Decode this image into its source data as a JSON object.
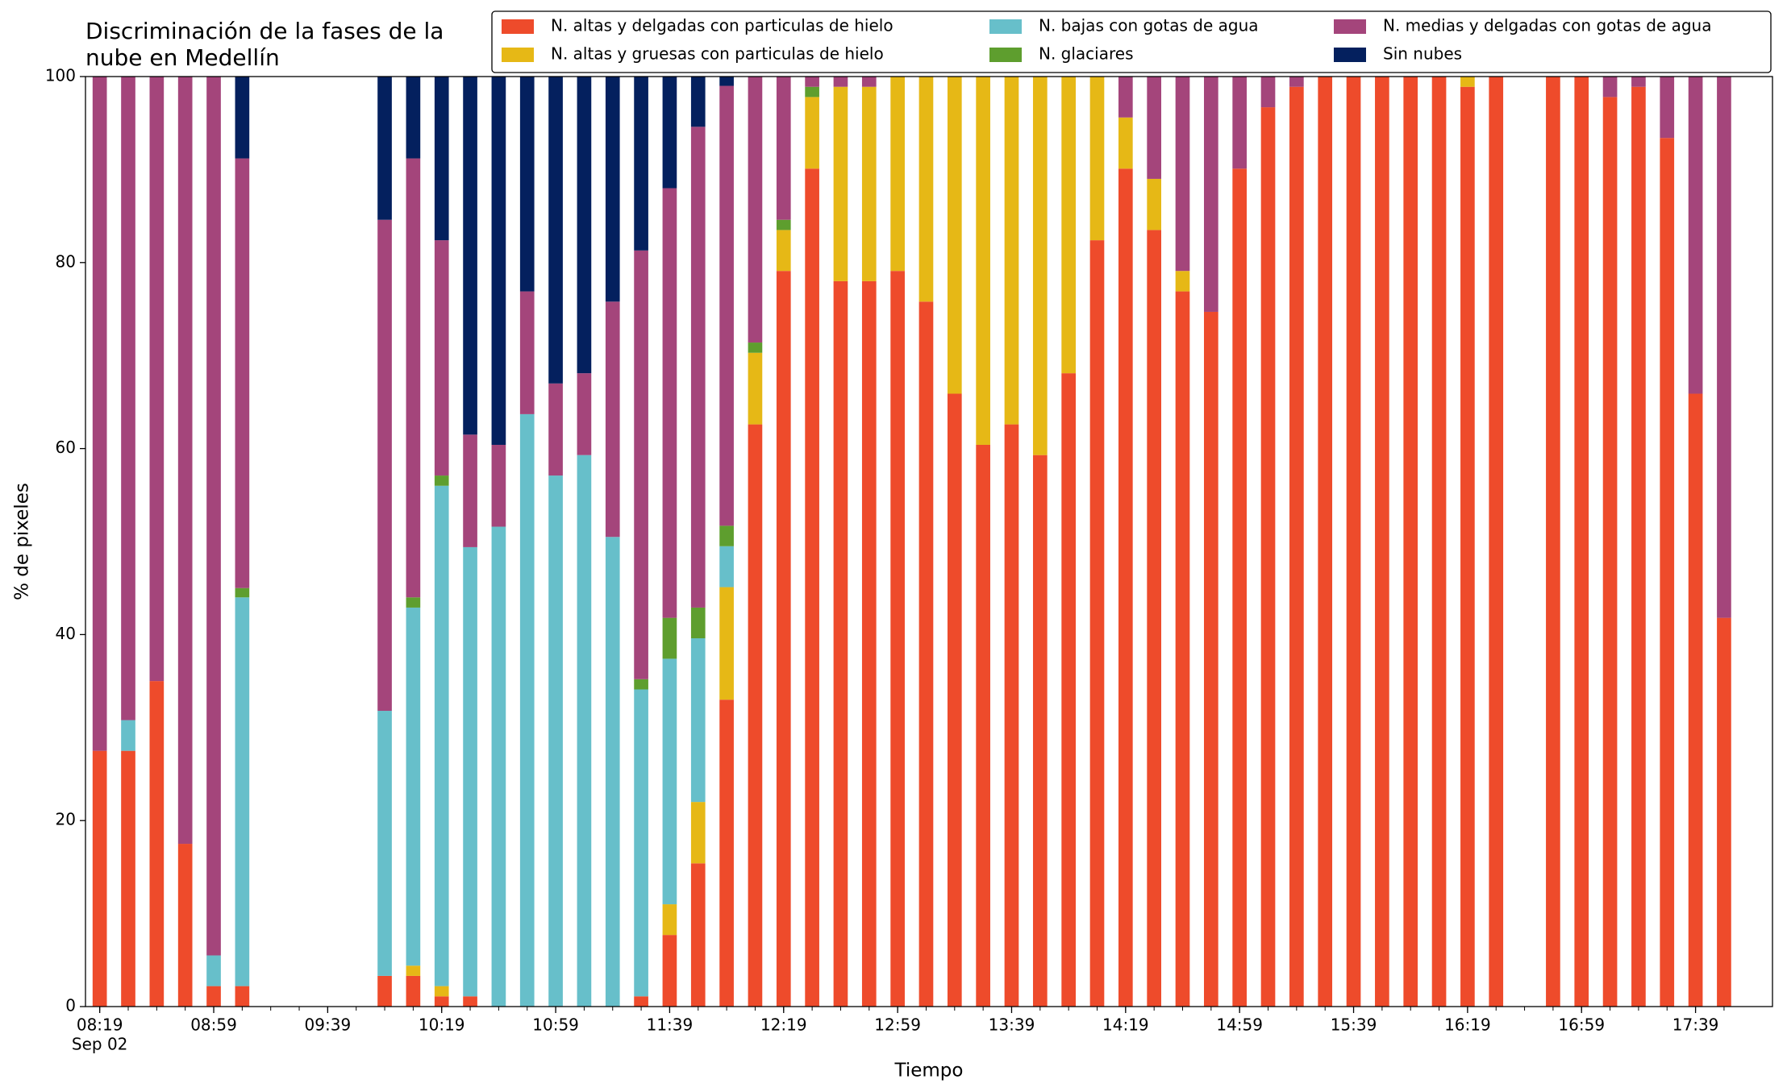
{
  "chart_data": {
    "type": "stacked_bar",
    "title": [
      "Discriminación de la fases de la",
      "nube en Medellín"
    ],
    "xlabel": "Tiempo",
    "ylabel": "% de pixeles",
    "x": [
      "08:19",
      "08:29",
      "08:39",
      "08:49",
      "08:59",
      "09:09",
      "09:19",
      "09:29",
      "09:39",
      "09:49",
      "09:59",
      "10:09",
      "10:19",
      "10:29",
      "10:39",
      "10:49",
      "10:59",
      "11:09",
      "11:19",
      "11:29",
      "11:39",
      "11:49",
      "11:59",
      "12:09",
      "12:19",
      "12:29",
      "12:39",
      "12:49",
      "12:59",
      "13:09",
      "13:19",
      "13:29",
      "13:39",
      "13:49",
      "13:59",
      "14:09",
      "14:19",
      "14:29",
      "14:39",
      "14:49",
      "14:59",
      "15:09",
      "15:19",
      "15:29",
      "15:39",
      "15:49",
      "15:59",
      "16:09",
      "16:19",
      "16:29",
      "16:39",
      "16:49",
      "16:59",
      "17:09",
      "17:19",
      "17:29",
      "17:39",
      "17:49"
    ],
    "x_date_label": "Sep 02",
    "xlim": [
      "08:14",
      "18:06"
    ],
    "xticks": [
      "08:19",
      "08:59",
      "09:39",
      "10:19",
      "10:59",
      "11:39",
      "12:19",
      "12:59",
      "13:39",
      "14:19",
      "14:59",
      "15:39",
      "16:19",
      "16:59",
      "17:39"
    ],
    "ylim": [
      0,
      100
    ],
    "yticks": [
      0,
      20,
      40,
      60,
      80,
      100
    ],
    "legend": "top-right",
    "series": [
      {
        "name": "N. altas y delgadas con particulas de hielo",
        "color": "#ee4b2b",
        "values": [
          27.5,
          27.5,
          35,
          17.5,
          2.2,
          2.2,
          null,
          null,
          null,
          null,
          3.3,
          3.3,
          1.1,
          1.1,
          0,
          0,
          0,
          0,
          0,
          1.1,
          7.7,
          15.4,
          33,
          62.6,
          79.1,
          90.1,
          78,
          78,
          79.1,
          75.8,
          65.9,
          60.4,
          62.6,
          59.3,
          68.1,
          82.4,
          90.1,
          83.5,
          76.9,
          74.7,
          90.1,
          96.7,
          98.9,
          100,
          100,
          100,
          100,
          100,
          98.9,
          100,
          null,
          100,
          100,
          97.8,
          98.9,
          93.4,
          65.9,
          41.8
        ]
      },
      {
        "name": "N. altas y gruesas con particulas de hielo",
        "color": "#e6b816",
        "values": [
          0,
          0,
          0,
          0,
          0,
          0,
          null,
          null,
          null,
          null,
          0,
          1.1,
          1.1,
          0,
          0,
          0,
          0,
          0,
          0,
          0,
          3.3,
          6.6,
          12.1,
          7.7,
          4.4,
          7.7,
          20.9,
          20.9,
          20.9,
          24.2,
          34.1,
          39.6,
          37.4,
          40.7,
          31.9,
          17.6,
          5.5,
          5.5,
          2.2,
          0,
          0,
          0,
          0,
          0,
          0,
          0,
          0,
          0,
          1.1,
          0,
          null,
          0,
          0,
          0,
          0,
          0,
          0,
          0
        ]
      },
      {
        "name": "N. bajas con gotas de agua",
        "color": "#67bfca",
        "values": [
          0,
          3.3,
          0,
          0,
          3.3,
          41.8,
          null,
          null,
          null,
          null,
          28.5,
          38.5,
          53.8,
          48.3,
          51.6,
          63.7,
          57.1,
          59.3,
          50.5,
          33,
          26.4,
          17.6,
          4.4,
          0,
          0,
          0,
          0,
          0,
          0,
          0,
          0,
          0,
          0,
          0,
          0,
          0,
          0,
          0,
          0,
          0,
          0,
          0,
          0,
          0,
          0,
          0,
          0,
          0,
          0,
          0,
          null,
          0,
          0,
          0,
          0,
          0,
          0,
          0
        ]
      },
      {
        "name": "N. glaciares",
        "color": "#5e9e2e",
        "values": [
          0,
          0,
          0,
          0,
          0,
          1,
          null,
          null,
          null,
          null,
          0,
          1.1,
          1.1,
          0,
          0,
          0,
          0,
          0,
          0,
          1.1,
          4.4,
          3.3,
          2.2,
          1.1,
          1.1,
          1.1,
          0,
          0,
          0,
          0,
          0,
          0,
          0,
          0,
          0,
          0,
          0,
          0,
          0,
          0,
          0,
          0,
          0,
          0,
          0,
          0,
          0,
          0,
          0,
          0,
          null,
          0,
          0,
          0,
          0,
          0,
          0,
          0
        ]
      },
      {
        "name": "N. medias y delgadas con gotas de agua",
        "color": "#a4457b",
        "values": [
          72.5,
          69.2,
          65,
          82.5,
          94.5,
          46.2,
          null,
          null,
          null,
          null,
          52.8,
          47.2,
          25.3,
          12.1,
          8.8,
          13.2,
          9.9,
          8.8,
          25.3,
          46.1,
          46.2,
          51.7,
          47.3,
          28.6,
          15.4,
          1.1,
          1.1,
          1.1,
          0,
          0,
          0,
          0,
          0,
          0,
          0,
          0,
          4.4,
          11,
          20.9,
          25.3,
          9.9,
          3.3,
          1.1,
          0,
          0,
          0,
          0,
          0,
          0,
          0,
          null,
          0,
          0,
          2.2,
          1.1,
          6.6,
          34.1,
          58.2
        ]
      },
      {
        "name": "Sin nubes",
        "color": "#04205e",
        "values": [
          0,
          0,
          0,
          0,
          0,
          8.8,
          null,
          null,
          null,
          null,
          15.4,
          8.8,
          17.6,
          38.5,
          39.6,
          23.1,
          33,
          31.9,
          24.2,
          18.7,
          12,
          5.4,
          1,
          0,
          0,
          0,
          0,
          0,
          0,
          0,
          0,
          0,
          0,
          0,
          0,
          0,
          0,
          0,
          0,
          0,
          0,
          0,
          0,
          0,
          0,
          0,
          0,
          0,
          0,
          0,
          null,
          0,
          0,
          0,
          0,
          0,
          0,
          0
        ]
      }
    ]
  }
}
